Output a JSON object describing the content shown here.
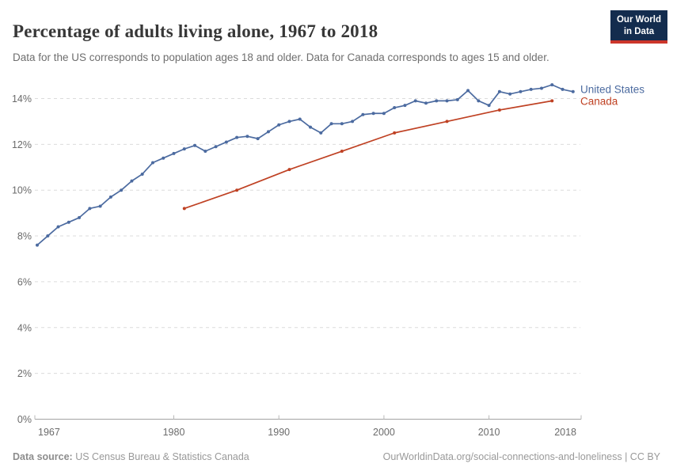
{
  "header": {
    "title": "Percentage of adults living alone, 1967 to 2018",
    "subtitle": "Data for the US corresponds to population ages 18 and older. Data for Canada corresponds to ages 15 and older.",
    "logo": {
      "line1": "Our World",
      "line2": "in Data",
      "bg_color": "#132c4e",
      "bar_color": "#cc362b"
    }
  },
  "chart_data": {
    "type": "line",
    "title": "Percentage of adults living alone, 1967 to 2018",
    "xlabel": "",
    "ylabel": "",
    "y_unit": "%",
    "xlim": [
      1967,
      2018
    ],
    "ylim": [
      0,
      14
    ],
    "grid": "horizontal-dashed",
    "legend_position": "right-of-line-ends",
    "xticks": [
      1967,
      1980,
      1990,
      2000,
      2010,
      2018
    ],
    "yticks": [
      0,
      2,
      4,
      6,
      8,
      10,
      12,
      14
    ],
    "axis_color": "#a3a3a3",
    "grid_color": "#dcdcdc",
    "tick_label_color": "#6b6b6b",
    "series": [
      {
        "name": "United States",
        "color": "#4c6ba0",
        "x": [
          1967,
          1968,
          1969,
          1970,
          1971,
          1972,
          1973,
          1974,
          1975,
          1976,
          1977,
          1978,
          1979,
          1980,
          1981,
          1982,
          1983,
          1984,
          1985,
          1986,
          1987,
          1988,
          1989,
          1990,
          1991,
          1992,
          1993,
          1994,
          1995,
          1996,
          1997,
          1998,
          1999,
          2000,
          2001,
          2002,
          2003,
          2004,
          2005,
          2006,
          2007,
          2008,
          2009,
          2010,
          2011,
          2012,
          2013,
          2014,
          2015,
          2016,
          2017,
          2018
        ],
        "values": [
          7.6,
          8.0,
          8.4,
          8.6,
          8.8,
          9.2,
          9.3,
          9.7,
          10.0,
          10.4,
          10.7,
          11.2,
          11.4,
          11.6,
          11.8,
          11.95,
          11.7,
          11.9,
          12.1,
          12.3,
          12.35,
          12.25,
          12.55,
          12.85,
          13.0,
          13.1,
          12.75,
          12.5,
          12.9,
          12.9,
          13.0,
          13.3,
          13.35,
          13.35,
          13.6,
          13.7,
          13.9,
          13.8,
          13.9,
          13.9,
          13.95,
          14.35,
          13.9,
          13.7,
          14.3,
          14.2,
          14.3,
          14.4,
          14.45,
          14.6,
          14.4,
          14.3
        ]
      },
      {
        "name": "Canada",
        "color": "#bf4123",
        "x": [
          1981,
          1986,
          1991,
          1996,
          2001,
          2006,
          2011,
          2016
        ],
        "values": [
          9.2,
          10.0,
          10.9,
          11.7,
          12.5,
          13.0,
          13.5,
          13.9
        ]
      }
    ]
  },
  "footer": {
    "source_label": "Data source:",
    "source_text": " US Census Bureau & Statistics Canada",
    "link_text": "OurWorldinData.org/social-connections-and-loneliness | CC BY"
  }
}
